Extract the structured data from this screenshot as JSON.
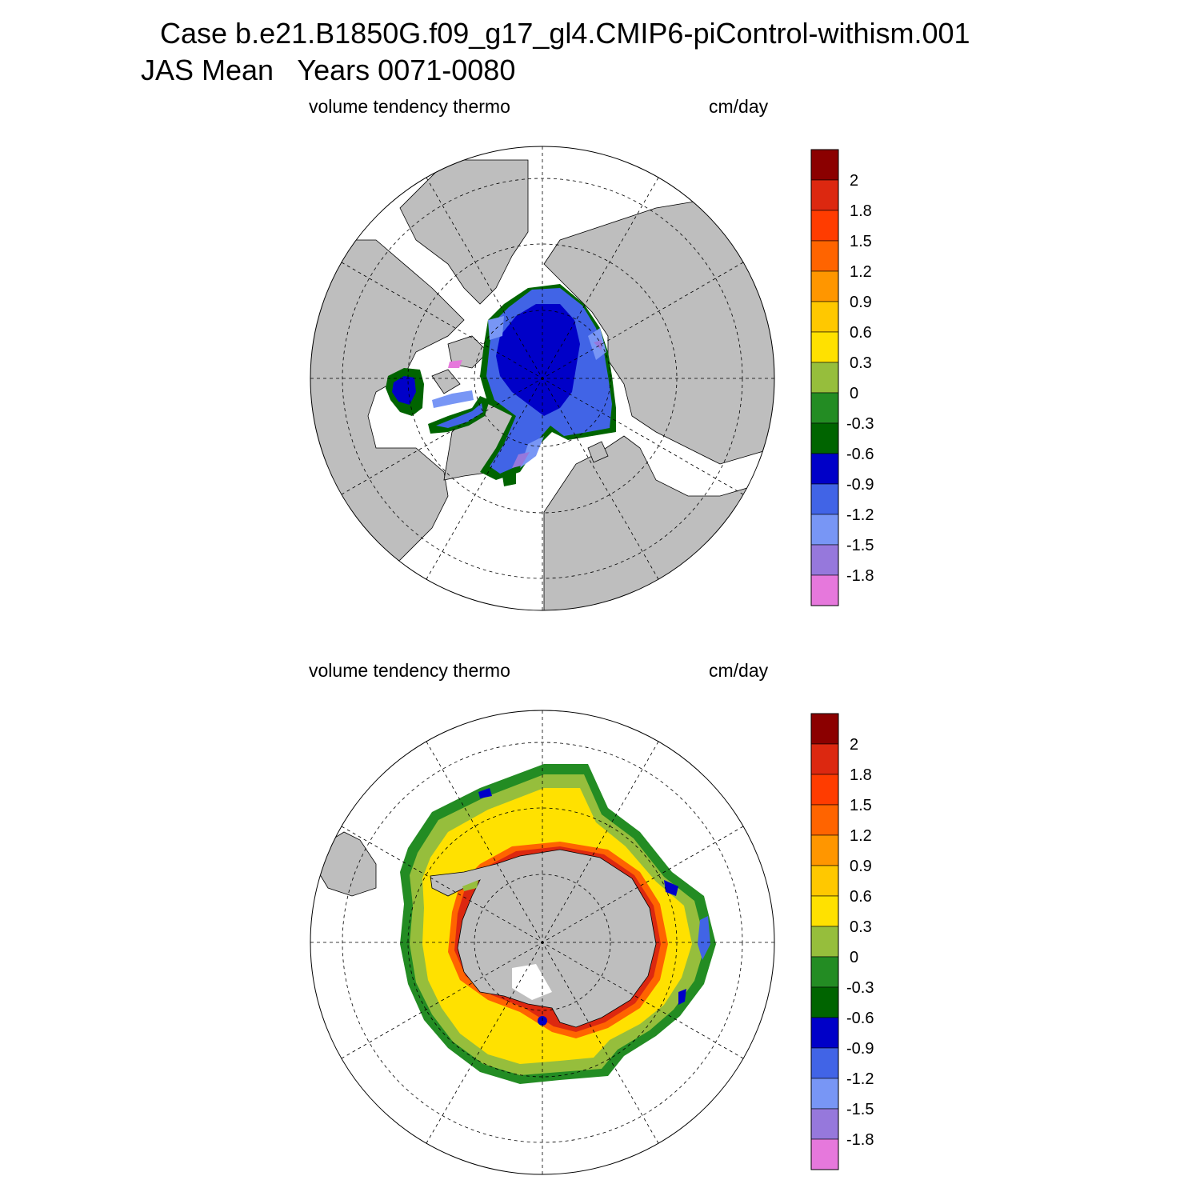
{
  "figure": {
    "title_line1": "Case b.e21.B1850G.f09_g17_gl4.CMIP6-piControl-withism.001",
    "title_line2": "JAS Mean   Years 0071-0080"
  },
  "panels": [
    {
      "id": "north",
      "left_label": "volume tendency thermo",
      "right_label": "cm/day"
    },
    {
      "id": "south",
      "left_label": "volume tendency thermo",
      "right_label": "cm/day"
    }
  ],
  "colorbar": {
    "labels": [
      "2",
      "1.8",
      "1.5",
      "1.2",
      "0.9",
      "0.6",
      "0.3",
      "0",
      "-0.3",
      "-0.6",
      "-0.9",
      "-1.2",
      "-1.5",
      "-1.8"
    ],
    "colors": [
      "#8b0000",
      "#dc2810",
      "#ff3c00",
      "#ff6400",
      "#ff9600",
      "#ffc800",
      "#ffe100",
      "#96be3c",
      "#238c23",
      "#006400",
      "#0000c8",
      "#4164e6",
      "#7896f5",
      "#9678dc",
      "#e678dc"
    ]
  },
  "map_colors": {
    "land": "#bebebe",
    "ocean": "#ffffff",
    "grid": "#000000"
  }
}
